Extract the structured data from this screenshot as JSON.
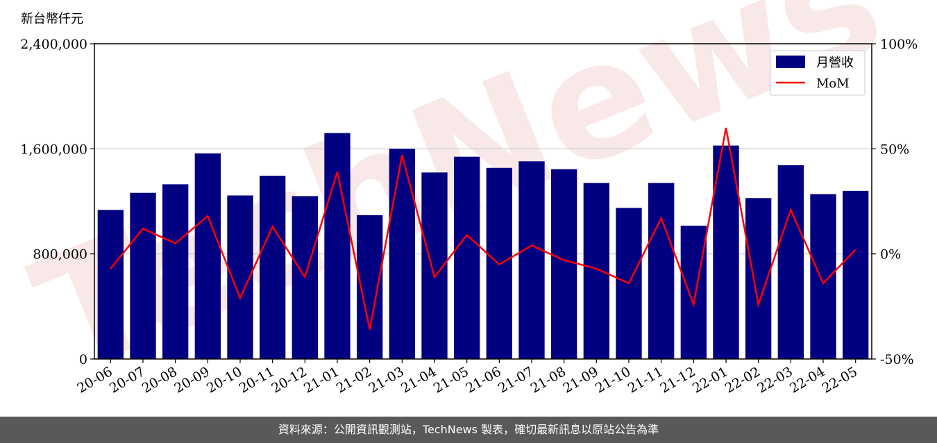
{
  "chart_data": {
    "type": "bar",
    "ylabel": "新台幣仟元",
    "ylim": [
      0,
      2400000
    ],
    "y_ticks": [
      "0",
      "800,000",
      "1,600,000",
      "2,400,000"
    ],
    "y2lim": [
      -50,
      100
    ],
    "y2_ticks": [
      "-50%",
      "0%",
      "50%",
      "100%"
    ],
    "legend_position": "top-right",
    "grid": "horizontal",
    "categories": [
      "20-06",
      "20-07",
      "20-08",
      "20-09",
      "20-10",
      "20-11",
      "20-12",
      "21-01",
      "21-02",
      "21-03",
      "21-04",
      "21-05",
      "21-06",
      "21-07",
      "21-08",
      "21-09",
      "21-10",
      "21-11",
      "21-12",
      "22-01",
      "22-02",
      "22-03",
      "22-04",
      "22-05"
    ],
    "series": [
      {
        "name": "月營收",
        "type": "bar",
        "color": "#000080",
        "axis": "left",
        "values": [
          1135000,
          1265000,
          1330000,
          1565000,
          1245000,
          1395000,
          1240000,
          1720000,
          1095000,
          1600000,
          1420000,
          1540000,
          1455000,
          1505000,
          1445000,
          1340000,
          1150000,
          1340000,
          1015000,
          1625000,
          1225000,
          1475000,
          1255000,
          1280000
        ]
      },
      {
        "name": "MoM",
        "type": "line",
        "color": "#ff0000",
        "axis": "right",
        "values": [
          -7,
          12,
          5,
          18,
          -21,
          13,
          -11,
          39,
          -36,
          47,
          -11,
          9,
          -5,
          4,
          -3,
          -7,
          -14,
          17,
          -24,
          60,
          -24,
          21,
          -14,
          2
        ]
      }
    ]
  },
  "watermark": "TechNews",
  "footer": "資料來源：公開資訊觀測站，TechNews 製表，確切最新訊息以原站公告為準"
}
